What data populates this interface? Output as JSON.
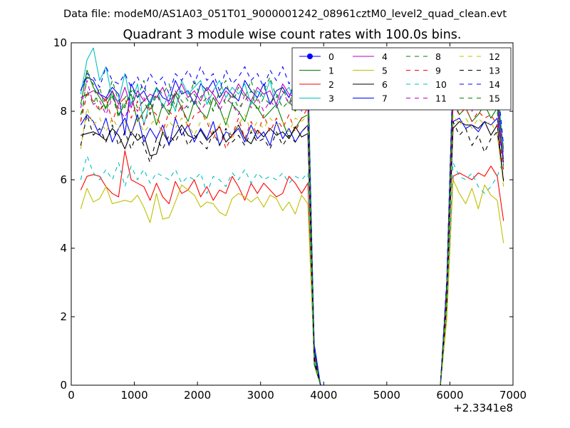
{
  "chart_data": {
    "type": "line",
    "suptitle": "Data file: modeM0/AS1A03_051T01_9000001242_08961cztM0_level2_quad_clean.evt",
    "title": "Quadrant 3 module wise count rates with 100.0s bins.",
    "xlabel": "",
    "ylabel": "",
    "x_offset_label": "+2.3341e8",
    "xlim": [
      0,
      7000
    ],
    "ylim": [
      0,
      10
    ],
    "xticks": [
      0,
      1000,
      2000,
      3000,
      4000,
      5000,
      6000,
      7000
    ],
    "yticks": [
      0,
      2,
      4,
      6,
      8,
      10
    ],
    "x": [
      150,
      250,
      350,
      450,
      550,
      650,
      750,
      850,
      950,
      1050,
      1150,
      1250,
      1350,
      1450,
      1550,
      1650,
      1750,
      1850,
      1950,
      2050,
      2150,
      2250,
      2350,
      2450,
      2550,
      2650,
      2750,
      2850,
      2950,
      3050,
      3150,
      3250,
      3350,
      3450,
      3550,
      3650,
      3750,
      3850,
      3950,
      4050,
      5850,
      5950,
      6050,
      6150,
      6250,
      6350,
      6450,
      6550,
      6650,
      6750,
      6850
    ],
    "legend_position": "upper-right",
    "series": [
      {
        "name": "0",
        "color": "#0000ff",
        "dash": "solid",
        "marker": true,
        "values": [
          8.6,
          9.0,
          8.9,
          8.5,
          8.4,
          8.7,
          8.5,
          7.3,
          8.8,
          8.4,
          8.6,
          8.2,
          8.7,
          8.4,
          8.3,
          8.9,
          8.5,
          8.6,
          8.2,
          8.8,
          8.6,
          8.9,
          8.4,
          8.7,
          8.5,
          8.3,
          8.9,
          8.6,
          8.4,
          8.8,
          8.2,
          8.6,
          8.7,
          8.4,
          8.9,
          8.5,
          8.7,
          1.2,
          0,
          0,
          0,
          3.0,
          9.2,
          8.6,
          8.8,
          8.4,
          9.0,
          8.6,
          8.7,
          8.4,
          6.9
        ]
      },
      {
        "name": "1",
        "color": "#008000",
        "dash": "solid",
        "marker": false,
        "values": [
          8.2,
          9.2,
          8.7,
          8.4,
          8.1,
          8.6,
          7.9,
          8.2,
          8.5,
          7.7,
          8.0,
          8.3,
          7.6,
          8.2,
          7.9,
          8.5,
          8.1,
          7.7,
          8.3,
          8.0,
          7.8,
          8.4,
          8.1,
          7.6,
          8.2,
          8.0,
          7.7,
          8.3,
          8.1,
          7.8,
          8.0,
          8.2,
          7.7,
          7.2,
          7.5,
          7.8,
          7.9,
          0.6,
          0,
          0,
          0,
          2.4,
          8.4,
          7.9,
          8.1,
          7.7,
          7.9,
          8.2,
          7.8,
          8.1,
          6.5
        ]
      },
      {
        "name": "2",
        "color": "#ff0000",
        "dash": "solid",
        "marker": false,
        "values": [
          5.7,
          6.1,
          6.15,
          6.1,
          5.8,
          5.6,
          5.5,
          6.85,
          6.0,
          5.9,
          5.8,
          5.4,
          5.9,
          5.5,
          5.3,
          5.95,
          5.6,
          5.7,
          6.0,
          5.5,
          5.8,
          5.4,
          5.7,
          5.6,
          6.1,
          5.8,
          5.4,
          5.9,
          5.6,
          5.9,
          5.7,
          5.5,
          5.6,
          6.1,
          5.9,
          5.6,
          5.9,
          0.7,
          0,
          0,
          0,
          2.0,
          6.1,
          6.2,
          6.1,
          6.0,
          6.2,
          6.1,
          6.4,
          6.1,
          4.8
        ]
      },
      {
        "name": "3",
        "color": "#00bfbf",
        "dash": "solid",
        "marker": false,
        "values": [
          8.5,
          9.5,
          9.85,
          8.9,
          9.3,
          8.4,
          8.3,
          9.1,
          8.2,
          8.8,
          7.6,
          8.3,
          8.7,
          8.1,
          8.5,
          8.0,
          8.9,
          8.5,
          8.7,
          8.9,
          8.2,
          8.6,
          8.9,
          8.4,
          8.7,
          8.5,
          8.8,
          8.2,
          8.6,
          8.4,
          8.9,
          8.1,
          8.5,
          8.7,
          8.3,
          8.8,
          9.5,
          0.9,
          0,
          0,
          0,
          2.8,
          9.0,
          8.9,
          8.8,
          9.3,
          8.6,
          8.7,
          9.0,
          8.8,
          6.8
        ]
      },
      {
        "name": "4",
        "color": "#bf00bf",
        "dash": "solid",
        "marker": false,
        "values": [
          8.4,
          8.5,
          8.6,
          8.5,
          8.3,
          8.6,
          8.2,
          8.7,
          8.1,
          8.6,
          8.3,
          8.5,
          8.4,
          8.7,
          8.2,
          8.5,
          8.8,
          8.4,
          8.6,
          8.3,
          8.7,
          8.5,
          8.2,
          8.6,
          8.4,
          8.8,
          8.5,
          8.3,
          8.7,
          8.5,
          8.6,
          8.2,
          8.8,
          8.5,
          8.4,
          8.6,
          8.8,
          0.8,
          0,
          0,
          0,
          2.6,
          8.8,
          8.5,
          8.6,
          8.4,
          8.7,
          8.5,
          8.6,
          8.3,
          6.6
        ]
      },
      {
        "name": "5",
        "color": "#bfbf00",
        "dash": "solid",
        "marker": false,
        "values": [
          5.15,
          5.75,
          5.35,
          5.45,
          5.8,
          5.3,
          5.35,
          5.4,
          5.35,
          5.55,
          5.2,
          4.75,
          5.6,
          4.85,
          4.9,
          5.35,
          5.85,
          5.7,
          5.55,
          5.2,
          5.35,
          5.3,
          5.05,
          4.95,
          5.45,
          5.6,
          5.5,
          5.35,
          5.5,
          5.2,
          5.55,
          5.45,
          5.1,
          5.35,
          5.0,
          5.55,
          5.3,
          0.7,
          0,
          0,
          0,
          1.9,
          6.0,
          5.6,
          5.3,
          5.75,
          5.15,
          5.85,
          5.55,
          5.4,
          4.15
        ]
      },
      {
        "name": "6",
        "color": "#000000",
        "dash": "solid",
        "marker": false,
        "values": [
          7.3,
          7.35,
          7.4,
          7.3,
          7.15,
          7.5,
          7.3,
          6.9,
          7.4,
          7.15,
          7.3,
          6.7,
          6.75,
          7.4,
          7.05,
          7.3,
          7.6,
          7.3,
          7.2,
          7.45,
          7.15,
          7.35,
          7.55,
          7.1,
          7.3,
          7.6,
          7.2,
          7.05,
          7.45,
          7.25,
          7.5,
          7.3,
          7.4,
          7.2,
          7.55,
          7.25,
          7.35,
          0.7,
          0,
          0,
          0,
          2.4,
          7.5,
          7.7,
          7.6,
          7.6,
          7.5,
          7.7,
          7.3,
          7.6,
          5.95
        ]
      },
      {
        "name": "7",
        "color": "#0000ff",
        "dash": "solid",
        "marker": false,
        "values": [
          7.6,
          7.9,
          7.7,
          7.3,
          7.8,
          7.1,
          7.5,
          7.8,
          7.3,
          7.9,
          7.1,
          7.5,
          7.2,
          7.6,
          7.0,
          7.8,
          7.3,
          7.6,
          7.1,
          7.5,
          7.2,
          7.7,
          7.0,
          7.4,
          7.3,
          7.5,
          7.1,
          7.6,
          7.2,
          7.4,
          7.0,
          7.7,
          7.2,
          7.5,
          7.1,
          7.4,
          7.6,
          1.0,
          0,
          0,
          0,
          2.7,
          7.7,
          7.8,
          7.5,
          7.6,
          7.4,
          7.7,
          7.6,
          7.8,
          6.5
        ]
      },
      {
        "name": "8",
        "color": "#008000",
        "dash": "dashed",
        "marker": false,
        "values": [
          7.7,
          9.0,
          8.8,
          8.0,
          8.3,
          8.9,
          8.3,
          8.1,
          8.7,
          8.4,
          8.9,
          7.9,
          8.7,
          8.5,
          8.8,
          8.1,
          8.6,
          8.3,
          8.9,
          8.4,
          8.7,
          8.0,
          8.6,
          8.9,
          8.2,
          8.7,
          8.4,
          8.9,
          8.3,
          8.6,
          9.0,
          8.4,
          8.7,
          8.2,
          8.8,
          8.5,
          8.9,
          1.0,
          0,
          0,
          0,
          2.9,
          9.0,
          8.7,
          8.8,
          8.5,
          8.9,
          8.6,
          8.8,
          8.4,
          6.9
        ]
      },
      {
        "name": "9",
        "color": "#ff0000",
        "dash": "dashed",
        "marker": false,
        "values": [
          7.7,
          8.5,
          8.3,
          8.0,
          8.4,
          7.7,
          8.2,
          8.4,
          7.8,
          8.3,
          7.6,
          8.1,
          7.9,
          7.4,
          8.0,
          7.8,
          8.2,
          7.5,
          7.9,
          8.0,
          7.7,
          7.2,
          7.6,
          6.9,
          7.3,
          7.8,
          7.2,
          7.7,
          7.3,
          7.9,
          7.4,
          7.8,
          7.5,
          7.9,
          7.4,
          7.8,
          8.1,
          0.9,
          0,
          0,
          0,
          2.7,
          8.2,
          7.9,
          8.1,
          7.7,
          8.0,
          7.8,
          7.9,
          7.6,
          6.3
        ]
      },
      {
        "name": "10",
        "color": "#00bfbf",
        "dash": "dashed",
        "marker": false,
        "values": [
          6.0,
          6.7,
          6.2,
          6.0,
          6.3,
          6.0,
          6.5,
          5.8,
          6.4,
          6.0,
          6.3,
          5.9,
          6.2,
          6.1,
          6.0,
          6.3,
          5.9,
          6.1,
          6.0,
          6.2,
          5.6,
          6.1,
          6.0,
          5.8,
          6.2,
          6.0,
          6.3,
          5.9,
          6.2,
          6.0,
          6.1,
          6.0,
          6.2,
          5.9,
          6.1,
          6.0,
          6.2,
          0.7,
          0,
          0,
          0,
          2.2,
          6.5,
          6.1,
          6.0,
          6.2,
          5.8,
          5.6,
          5.8,
          6.1,
          6.6
        ]
      },
      {
        "name": "11",
        "color": "#bf00bf",
        "dash": "dashed",
        "marker": false,
        "values": [
          8.1,
          8.9,
          8.2,
          8.3,
          7.9,
          8.4,
          8.1,
          7.8,
          8.3,
          8.0,
          8.4,
          7.9,
          8.5,
          8.1,
          8.2,
          8.6,
          8.0,
          8.2,
          8.4,
          8.0,
          8.3,
          8.6,
          8.0,
          8.4,
          8.2,
          7.9,
          8.5,
          8.1,
          8.4,
          8.0,
          8.3,
          8.1,
          8.6,
          8.2,
          8.5,
          8.0,
          8.3,
          0.9,
          0,
          0,
          0,
          2.6,
          8.3,
          8.2,
          8.4,
          8.0,
          8.5,
          8.1,
          8.3,
          8.1,
          6.6
        ]
      },
      {
        "name": "12",
        "color": "#bfbf00",
        "dash": "dashed",
        "marker": false,
        "values": [
          6.9,
          8.1,
          7.6,
          7.8,
          7.4,
          7.8,
          7.5,
          7.7,
          7.3,
          7.8,
          7.4,
          7.6,
          7.8,
          7.3,
          7.7,
          7.5,
          7.8,
          7.6,
          7.3,
          7.7,
          7.8,
          7.4,
          7.6,
          7.8,
          7.2,
          7.6,
          7.9,
          7.4,
          7.7,
          7.5,
          7.8,
          7.6,
          7.7,
          7.4,
          7.8,
          7.7,
          7.9,
          0.8,
          0,
          0,
          0,
          2.4,
          7.9,
          7.6,
          7.8,
          7.5,
          7.8,
          7.6,
          7.7,
          7.3,
          5.8
        ]
      },
      {
        "name": "13",
        "color": "#000000",
        "dash": "dashed",
        "marker": false,
        "values": [
          7.0,
          7.9,
          7.3,
          7.5,
          7.1,
          7.6,
          7.0,
          7.4,
          6.9,
          7.4,
          7.0,
          6.5,
          7.2,
          6.9,
          7.3,
          7.1,
          7.5,
          7.0,
          7.3,
          7.1,
          6.9,
          7.4,
          7.0,
          7.5,
          7.1,
          7.3,
          7.0,
          7.4,
          7.1,
          7.2,
          6.9,
          7.4,
          7.0,
          7.3,
          7.1,
          7.4,
          7.6,
          0.8,
          0,
          0,
          0,
          2.4,
          7.7,
          7.3,
          7.5,
          7.0,
          7.3,
          6.8,
          7.2,
          7.4,
          6.0
        ]
      },
      {
        "name": "14",
        "color": "#0000ff",
        "dash": "dashed",
        "marker": false,
        "values": [
          8.6,
          9.1,
          9.0,
          8.7,
          9.3,
          8.9,
          8.8,
          9.1,
          8.7,
          9.0,
          8.6,
          9.1,
          8.8,
          9.0,
          8.5,
          9.1,
          8.9,
          9.2,
          8.8,
          9.3,
          8.9,
          9.1,
          8.6,
          9.2,
          8.8,
          9.0,
          9.3,
          8.9,
          9.1,
          8.7,
          9.2,
          8.9,
          9.3,
          8.8,
          9.1,
          9.0,
          9.2,
          1.1,
          0,
          0,
          0,
          3.1,
          9.3,
          8.9,
          9.1,
          8.8,
          9.2,
          8.9,
          9.1,
          8.9,
          7.0
        ]
      },
      {
        "name": "15",
        "color": "#008000",
        "dash": "dashed",
        "marker": false,
        "values": [
          7.9,
          8.6,
          8.2,
          8.7,
          8.0,
          8.5,
          7.8,
          8.4,
          8.6,
          8.1,
          8.3,
          7.9,
          8.5,
          8.2,
          8.0,
          8.6,
          8.3,
          8.1,
          8.5,
          8.2,
          8.4,
          8.0,
          8.6,
          8.2,
          8.5,
          8.1,
          8.3,
          8.6,
          8.0,
          8.4,
          8.2,
          8.5,
          8.1,
          8.3,
          8.0,
          8.5,
          8.6,
          0.9,
          0,
          0,
          0,
          2.7,
          8.6,
          8.2,
          8.5,
          8.1,
          8.4,
          8.2,
          8.3,
          8.0,
          6.4
        ]
      }
    ]
  }
}
